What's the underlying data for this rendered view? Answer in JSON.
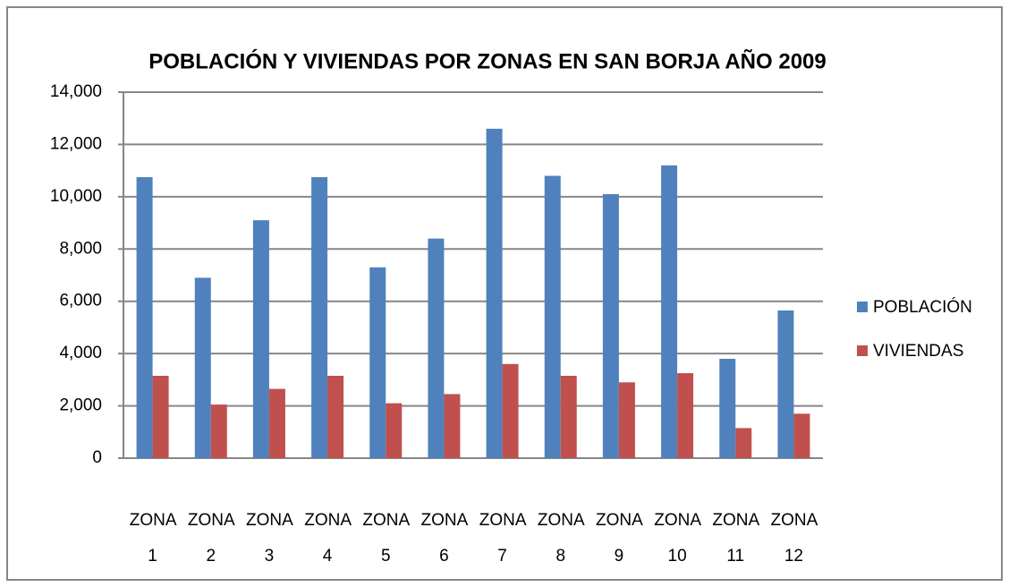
{
  "chart_data": {
    "type": "bar",
    "title": "POBLACIÓN Y VIVIENDAS POR ZONAS EN SAN BORJA AÑO 2009",
    "categories": [
      "ZONA 1",
      "ZONA 2",
      "ZONA 3",
      "ZONA 4",
      "ZONA 5",
      "ZONA 6",
      "ZONA 7",
      "ZONA 8",
      "ZONA 9",
      "ZONA 10",
      "ZONA 11",
      "ZONA 12"
    ],
    "series": [
      {
        "name": "POBLACIÓN",
        "color": "#4f81bd",
        "values": [
          10750,
          6900,
          9100,
          10750,
          7300,
          8400,
          12600,
          10800,
          10100,
          11200,
          3800,
          5650
        ]
      },
      {
        "name": "VIVIENDAS",
        "color": "#c0504d",
        "values": [
          3150,
          2050,
          2650,
          3150,
          2100,
          2450,
          3600,
          3150,
          2900,
          3250,
          1150,
          1700
        ]
      }
    ],
    "ylim": [
      0,
      14000
    ],
    "yticks": [
      0,
      {
        "value": 2000,
        "label": "2,000"
      },
      {
        "value": 4000,
        "label": "4,000"
      },
      {
        "value": 6000,
        "label": "6,000"
      },
      {
        "value": 8000,
        "label": "8,000"
      },
      {
        "value": 10000,
        "label": "10,000"
      },
      {
        "value": 12000,
        "label": "12,000"
      },
      {
        "value": 14000,
        "label": "14,000"
      }
    ],
    "grid": true,
    "legend": "right"
  }
}
